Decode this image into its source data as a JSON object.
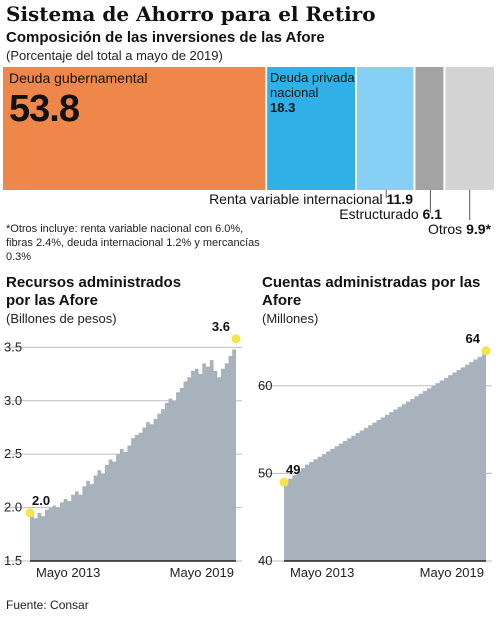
{
  "header": {
    "title": "Sistema de Ahorro para el Retiro",
    "subtitle": "Composición de las inversiones de las Afore",
    "note": "(Porcentaje del total a mayo de 2019)"
  },
  "composition": {
    "type": "bar",
    "segments": [
      {
        "label": "Deuda gubernamental",
        "value": 53.8,
        "display": "53.8",
        "color": "#F0874A"
      },
      {
        "label": "Deuda privada nacional",
        "value": 18.3,
        "display": "18.3",
        "color": "#2FB0E6"
      },
      {
        "label": "Renta variable internacional",
        "value": 11.9,
        "display": "11.9",
        "color": "#86D0F5"
      },
      {
        "label": "Estructurado",
        "value": 6.1,
        "display": "6.1",
        "color": "#A3A3A3"
      },
      {
        "label": "Otros",
        "value": 9.9,
        "display": "9.9*",
        "color": "#D3D3D3"
      }
    ]
  },
  "footnote": "*Otros incluye: renta variable nacional con 6.0%, fibras 2.4%, deuda internacional 1.2% y mercancías 0.3%",
  "chart_data": [
    {
      "type": "area",
      "title": "Recursos administrados por las Afore",
      "unit": "(Billones de pesos)",
      "x_labels": [
        "Mayo 2013",
        "Mayo 2019"
      ],
      "y_ticks": [
        "1.5",
        "2.0",
        "2.5",
        "3.0",
        "3.5"
      ],
      "ylim": [
        1.5,
        3.55
      ],
      "start_label": "2.0",
      "end_label": "3.6",
      "values": [
        1.95,
        1.9,
        1.95,
        1.92,
        1.98,
        2.0,
        2.02,
        2.0,
        2.05,
        2.08,
        2.06,
        2.12,
        2.15,
        2.12,
        2.2,
        2.25,
        2.22,
        2.3,
        2.35,
        2.32,
        2.4,
        2.45,
        2.43,
        2.5,
        2.55,
        2.52,
        2.58,
        2.65,
        2.68,
        2.7,
        2.75,
        2.8,
        2.78,
        2.83,
        2.88,
        2.92,
        2.98,
        3.02,
        3.0,
        3.08,
        3.12,
        3.18,
        3.22,
        3.28,
        3.3,
        3.25,
        3.35,
        3.32,
        3.38,
        3.28,
        3.22,
        3.3,
        3.35,
        3.42,
        3.48,
        3.58
      ]
    },
    {
      "type": "area",
      "title": "Cuentas administradas por las Afore",
      "unit": "(Millones)",
      "x_labels": [
        "Mayo 2013",
        "Mayo 2019"
      ],
      "y_ticks": [
        "40",
        "50",
        "60"
      ],
      "ylim": [
        40,
        65
      ],
      "start_label": "49",
      "end_label": "64",
      "values": [
        49,
        49.4,
        49.8,
        50.2,
        50.6,
        51,
        51.3,
        51.6,
        51.9,
        52.2,
        52.5,
        52.8,
        53.1,
        53.4,
        53.7,
        54,
        54.3,
        54.6,
        54.9,
        55.2,
        55.5,
        55.8,
        56.1,
        56.4,
        56.7,
        57,
        57.3,
        57.6,
        57.9,
        58.2,
        58.5,
        58.8,
        59.1,
        59.4,
        59.7,
        60,
        60.3,
        60.6,
        60.9,
        61.2,
        61.5,
        61.8,
        62.1,
        62.4,
        62.7,
        63,
        63.3,
        63.6,
        64
      ]
    }
  ],
  "source": "Fuente: Consar"
}
